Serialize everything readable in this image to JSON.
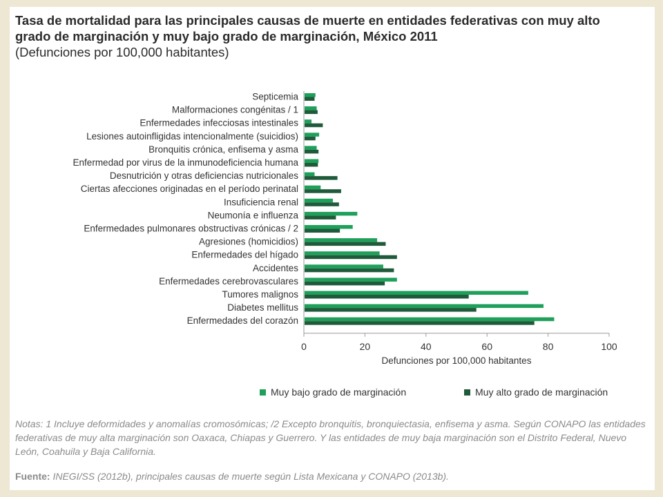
{
  "title": {
    "line1": "Tasa de mortalidad para las principales causas de muerte en entidades federativas con muy alto",
    "line2": "grado de marginación y muy bajo grado de marginación, México 2011",
    "line3": "(Defunciones por 100,000 habitantes)"
  },
  "notes": "Notas: 1 Incluye deformidades y anomalías cromosómicas; /2 Excepto bronquitis, bronquiectasia, enfisema y asma. Según CONAPO las entidades federativas de muy alta marginación son Oaxaca, Chiapas y Guerrero. Y las entidades de muy baja marginación son el Distrito Federal, Nuevo León, Coahuila y Baja California.",
  "source": {
    "label": "Fuente:",
    "text": " INEGI/SS (2012b), principales causas de muerte según Lista Mexicana y CONAPO (2013b)."
  },
  "colors": {
    "low": "#1fa05a",
    "high": "#1f5a3a",
    "background": "#ede7d3"
  },
  "chart_data": {
    "type": "bar",
    "orientation": "horizontal",
    "xlabel": "Defunciones por 100,000 habitantes",
    "xlim": [
      0,
      100
    ],
    "xticks": [
      0,
      20,
      40,
      60,
      80,
      100
    ],
    "legend_position": "bottom",
    "categories": [
      "Septicemia",
      "Malformaciones congénitas / 1",
      "Enfermedades infecciosas intestinales",
      "Lesiones autoinfligidas intencionalmente (suicidios)",
      "Bronquitis crónica, enfisema y asma",
      "Enfermedad por virus de la inmunodeficiencia humana",
      "Desnutrición y otras deficiencias nutricionales",
      "Ciertas afecciones originadas en el período perinatal",
      "Insuficiencia renal",
      "Neumonía e influenza",
      "Enfermedades pulmonares obstructivas crónicas / 2",
      "Agresiones (homicidios)",
      "Enfermedades del hígado",
      "Accidentes",
      "Enfermedades cerebrovasculares",
      "Tumores malignos",
      "Diabetes mellitus",
      "Enfermedades del corazón"
    ],
    "series": [
      {
        "name": "Muy bajo grado de marginación",
        "values": [
          3.8,
          4.2,
          2.5,
          5.0,
          4.2,
          4.8,
          3.5,
          5.5,
          9.5,
          17.5,
          16.0,
          24.0,
          24.8,
          26.0,
          30.5,
          73.5,
          78.5,
          82.0
        ]
      },
      {
        "name": "Muy alto grado de marginación",
        "values": [
          3.5,
          4.5,
          6.2,
          3.8,
          4.8,
          4.6,
          11.0,
          12.2,
          11.5,
          10.5,
          11.8,
          26.8,
          30.5,
          29.5,
          26.5,
          54.0,
          56.5,
          75.5
        ]
      }
    ]
  }
}
